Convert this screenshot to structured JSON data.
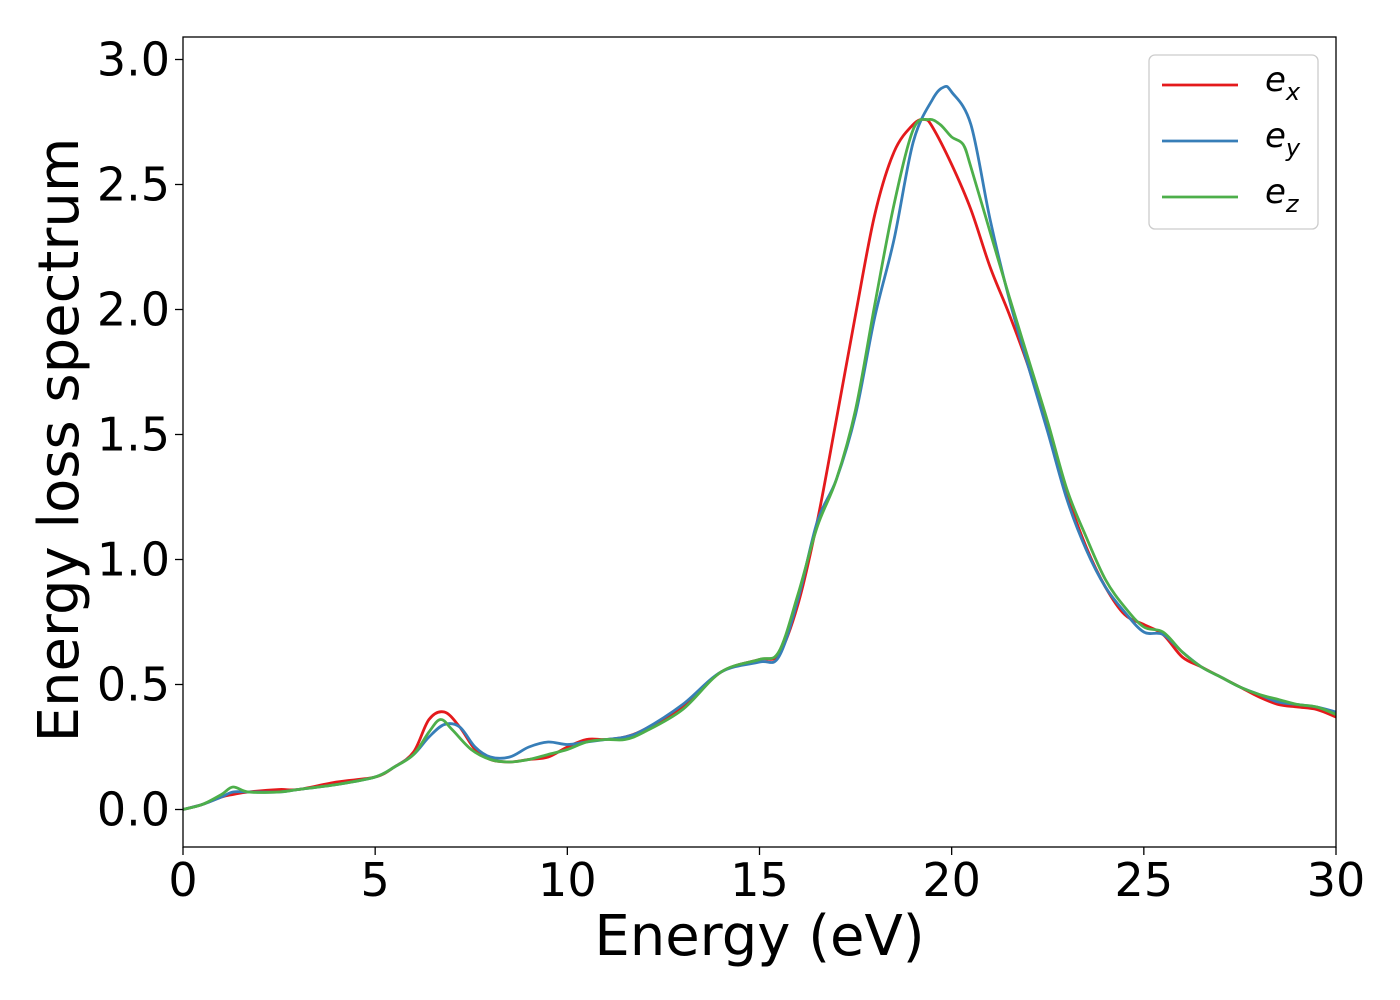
{
  "chart_data": {
    "type": "line",
    "title": "",
    "xlabel": "Energy (eV)",
    "ylabel": "Energy loss spectrum",
    "xlim": [
      0,
      30
    ],
    "ylim": [
      -0.15,
      3.09
    ],
    "xticks": [
      0,
      5,
      10,
      15,
      20,
      25,
      30
    ],
    "xtick_labels": [
      "0",
      "5",
      "10",
      "15",
      "20",
      "25",
      "30"
    ],
    "yticks": [
      0.0,
      0.5,
      1.0,
      1.5,
      2.0,
      2.5,
      3.0
    ],
    "ytick_labels": [
      "0.0",
      "0.5",
      "1.0",
      "1.5",
      "2.0",
      "2.5",
      "3.0"
    ],
    "grid": false,
    "legend_position": "top-right",
    "series": [
      {
        "name": "ex",
        "legend_base": "e",
        "legend_sub": "x",
        "color": "#e41a1c",
        "x": [
          0,
          0.5,
          1.0,
          1.3,
          1.7,
          2.5,
          3.0,
          4.0,
          5.0,
          5.5,
          6.0,
          6.4,
          6.8,
          7.2,
          7.6,
          8.0,
          8.5,
          9.0,
          9.5,
          10.0,
          10.5,
          11.0,
          11.5,
          12.0,
          13.0,
          14.0,
          15.0,
          15.5,
          16.0,
          16.5,
          17.0,
          17.5,
          18.0,
          18.5,
          19.0,
          19.3,
          19.5,
          20.0,
          20.5,
          21.0,
          21.5,
          22.0,
          22.5,
          23.0,
          23.5,
          24.0,
          24.5,
          25.0,
          25.5,
          26.0,
          26.5,
          27.0,
          27.5,
          28.0,
          28.5,
          29.0,
          29.5,
          30.0
        ],
        "values": [
          0.0,
          0.02,
          0.05,
          0.06,
          0.07,
          0.08,
          0.08,
          0.11,
          0.13,
          0.17,
          0.23,
          0.36,
          0.39,
          0.33,
          0.24,
          0.2,
          0.19,
          0.2,
          0.21,
          0.25,
          0.28,
          0.28,
          0.29,
          0.32,
          0.41,
          0.55,
          0.6,
          0.62,
          0.82,
          1.15,
          1.56,
          1.98,
          2.38,
          2.63,
          2.74,
          2.76,
          2.73,
          2.58,
          2.4,
          2.17,
          1.98,
          1.77,
          1.52,
          1.26,
          1.05,
          0.89,
          0.78,
          0.74,
          0.7,
          0.61,
          0.57,
          0.53,
          0.49,
          0.45,
          0.42,
          0.41,
          0.4,
          0.37
        ]
      },
      {
        "name": "ey",
        "legend_base": "e",
        "legend_sub": "y",
        "color": "#377eb8",
        "x": [
          0,
          0.5,
          1.0,
          1.3,
          1.7,
          2.5,
          3.0,
          4.0,
          5.0,
          5.5,
          6.0,
          6.4,
          6.8,
          7.2,
          7.6,
          8.0,
          8.5,
          9.0,
          9.5,
          10.0,
          10.5,
          11.0,
          11.5,
          12.0,
          13.0,
          14.0,
          15.0,
          15.5,
          16.0,
          16.5,
          17.0,
          17.5,
          18.0,
          18.5,
          19.0,
          19.5,
          19.8,
          20.0,
          20.5,
          21.0,
          21.5,
          22.0,
          22.5,
          23.0,
          23.5,
          24.0,
          24.5,
          25.0,
          25.5,
          26.0,
          26.5,
          27.0,
          27.5,
          28.0,
          28.5,
          29.0,
          29.5,
          30.0
        ],
        "values": [
          0.0,
          0.02,
          0.05,
          0.07,
          0.07,
          0.07,
          0.08,
          0.1,
          0.13,
          0.17,
          0.22,
          0.29,
          0.34,
          0.33,
          0.25,
          0.21,
          0.21,
          0.25,
          0.27,
          0.26,
          0.27,
          0.28,
          0.29,
          0.32,
          0.42,
          0.55,
          0.59,
          0.61,
          0.84,
          1.15,
          1.32,
          1.58,
          1.97,
          2.28,
          2.67,
          2.84,
          2.89,
          2.87,
          2.74,
          2.36,
          2.04,
          1.77,
          1.51,
          1.24,
          1.04,
          0.89,
          0.79,
          0.71,
          0.7,
          0.63,
          0.57,
          0.53,
          0.49,
          0.46,
          0.43,
          0.42,
          0.41,
          0.39
        ]
      },
      {
        "name": "ez",
        "legend_base": "e",
        "legend_sub": "z",
        "color": "#4daf4a",
        "x": [
          0,
          0.5,
          1.0,
          1.3,
          1.7,
          2.5,
          3.0,
          4.0,
          5.0,
          5.5,
          6.0,
          6.4,
          6.7,
          7.0,
          7.5,
          8.0,
          8.5,
          9.0,
          9.5,
          10.0,
          10.5,
          11.0,
          11.5,
          12.0,
          13.0,
          14.0,
          15.0,
          15.5,
          16.0,
          16.5,
          17.0,
          17.5,
          18.0,
          18.5,
          19.0,
          19.4,
          19.7,
          20.0,
          20.3,
          20.5,
          21.0,
          21.5,
          22.0,
          22.5,
          23.0,
          23.5,
          24.0,
          24.5,
          25.0,
          25.5,
          26.0,
          26.5,
          27.0,
          27.5,
          28.0,
          28.5,
          29.0,
          29.5,
          30.0
        ],
        "values": [
          0.0,
          0.02,
          0.06,
          0.09,
          0.07,
          0.07,
          0.08,
          0.1,
          0.13,
          0.17,
          0.22,
          0.31,
          0.36,
          0.32,
          0.24,
          0.2,
          0.19,
          0.2,
          0.22,
          0.24,
          0.27,
          0.28,
          0.28,
          0.31,
          0.4,
          0.55,
          0.6,
          0.63,
          0.86,
          1.13,
          1.32,
          1.6,
          2.02,
          2.42,
          2.72,
          2.76,
          2.74,
          2.69,
          2.66,
          2.57,
          2.31,
          2.05,
          1.8,
          1.55,
          1.28,
          1.09,
          0.92,
          0.81,
          0.73,
          0.71,
          0.63,
          0.57,
          0.53,
          0.49,
          0.46,
          0.44,
          0.42,
          0.41,
          0.38
        ]
      }
    ]
  }
}
